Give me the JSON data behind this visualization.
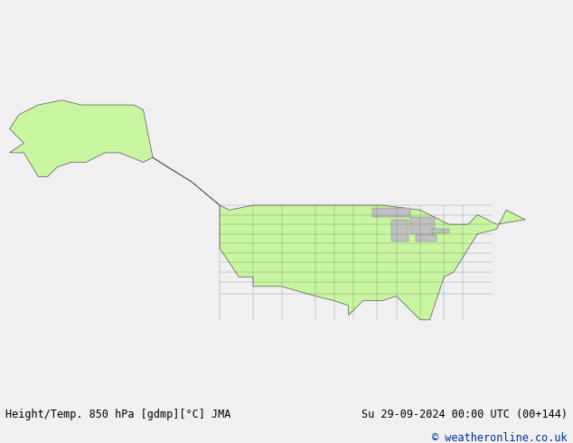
{
  "title_left": "Height/Temp. 850 hPa [gdmp][°C] JMA",
  "title_right": "Su 29-09-2024 00:00 UTC (00+144)",
  "copyright": "© weatheronline.co.uk",
  "land_color": "#c8f5a0",
  "ocean_color": "#d8d8d8",
  "lake_color": "#c0c0c0",
  "border_color": "#555555",
  "coastline_color": "#555555",
  "text_color": "#000000",
  "copyright_color": "#003399",
  "bottom_bar_color": "#f0f0f0",
  "fig_width": 6.34,
  "fig_height": 4.9,
  "dpi": 100,
  "extent_lon_min": -170,
  "extent_lon_max": -50,
  "extent_lat_min": 15,
  "extent_lat_max": 85,
  "font_size_labels": 8.5,
  "font_size_copyright": 8.5
}
